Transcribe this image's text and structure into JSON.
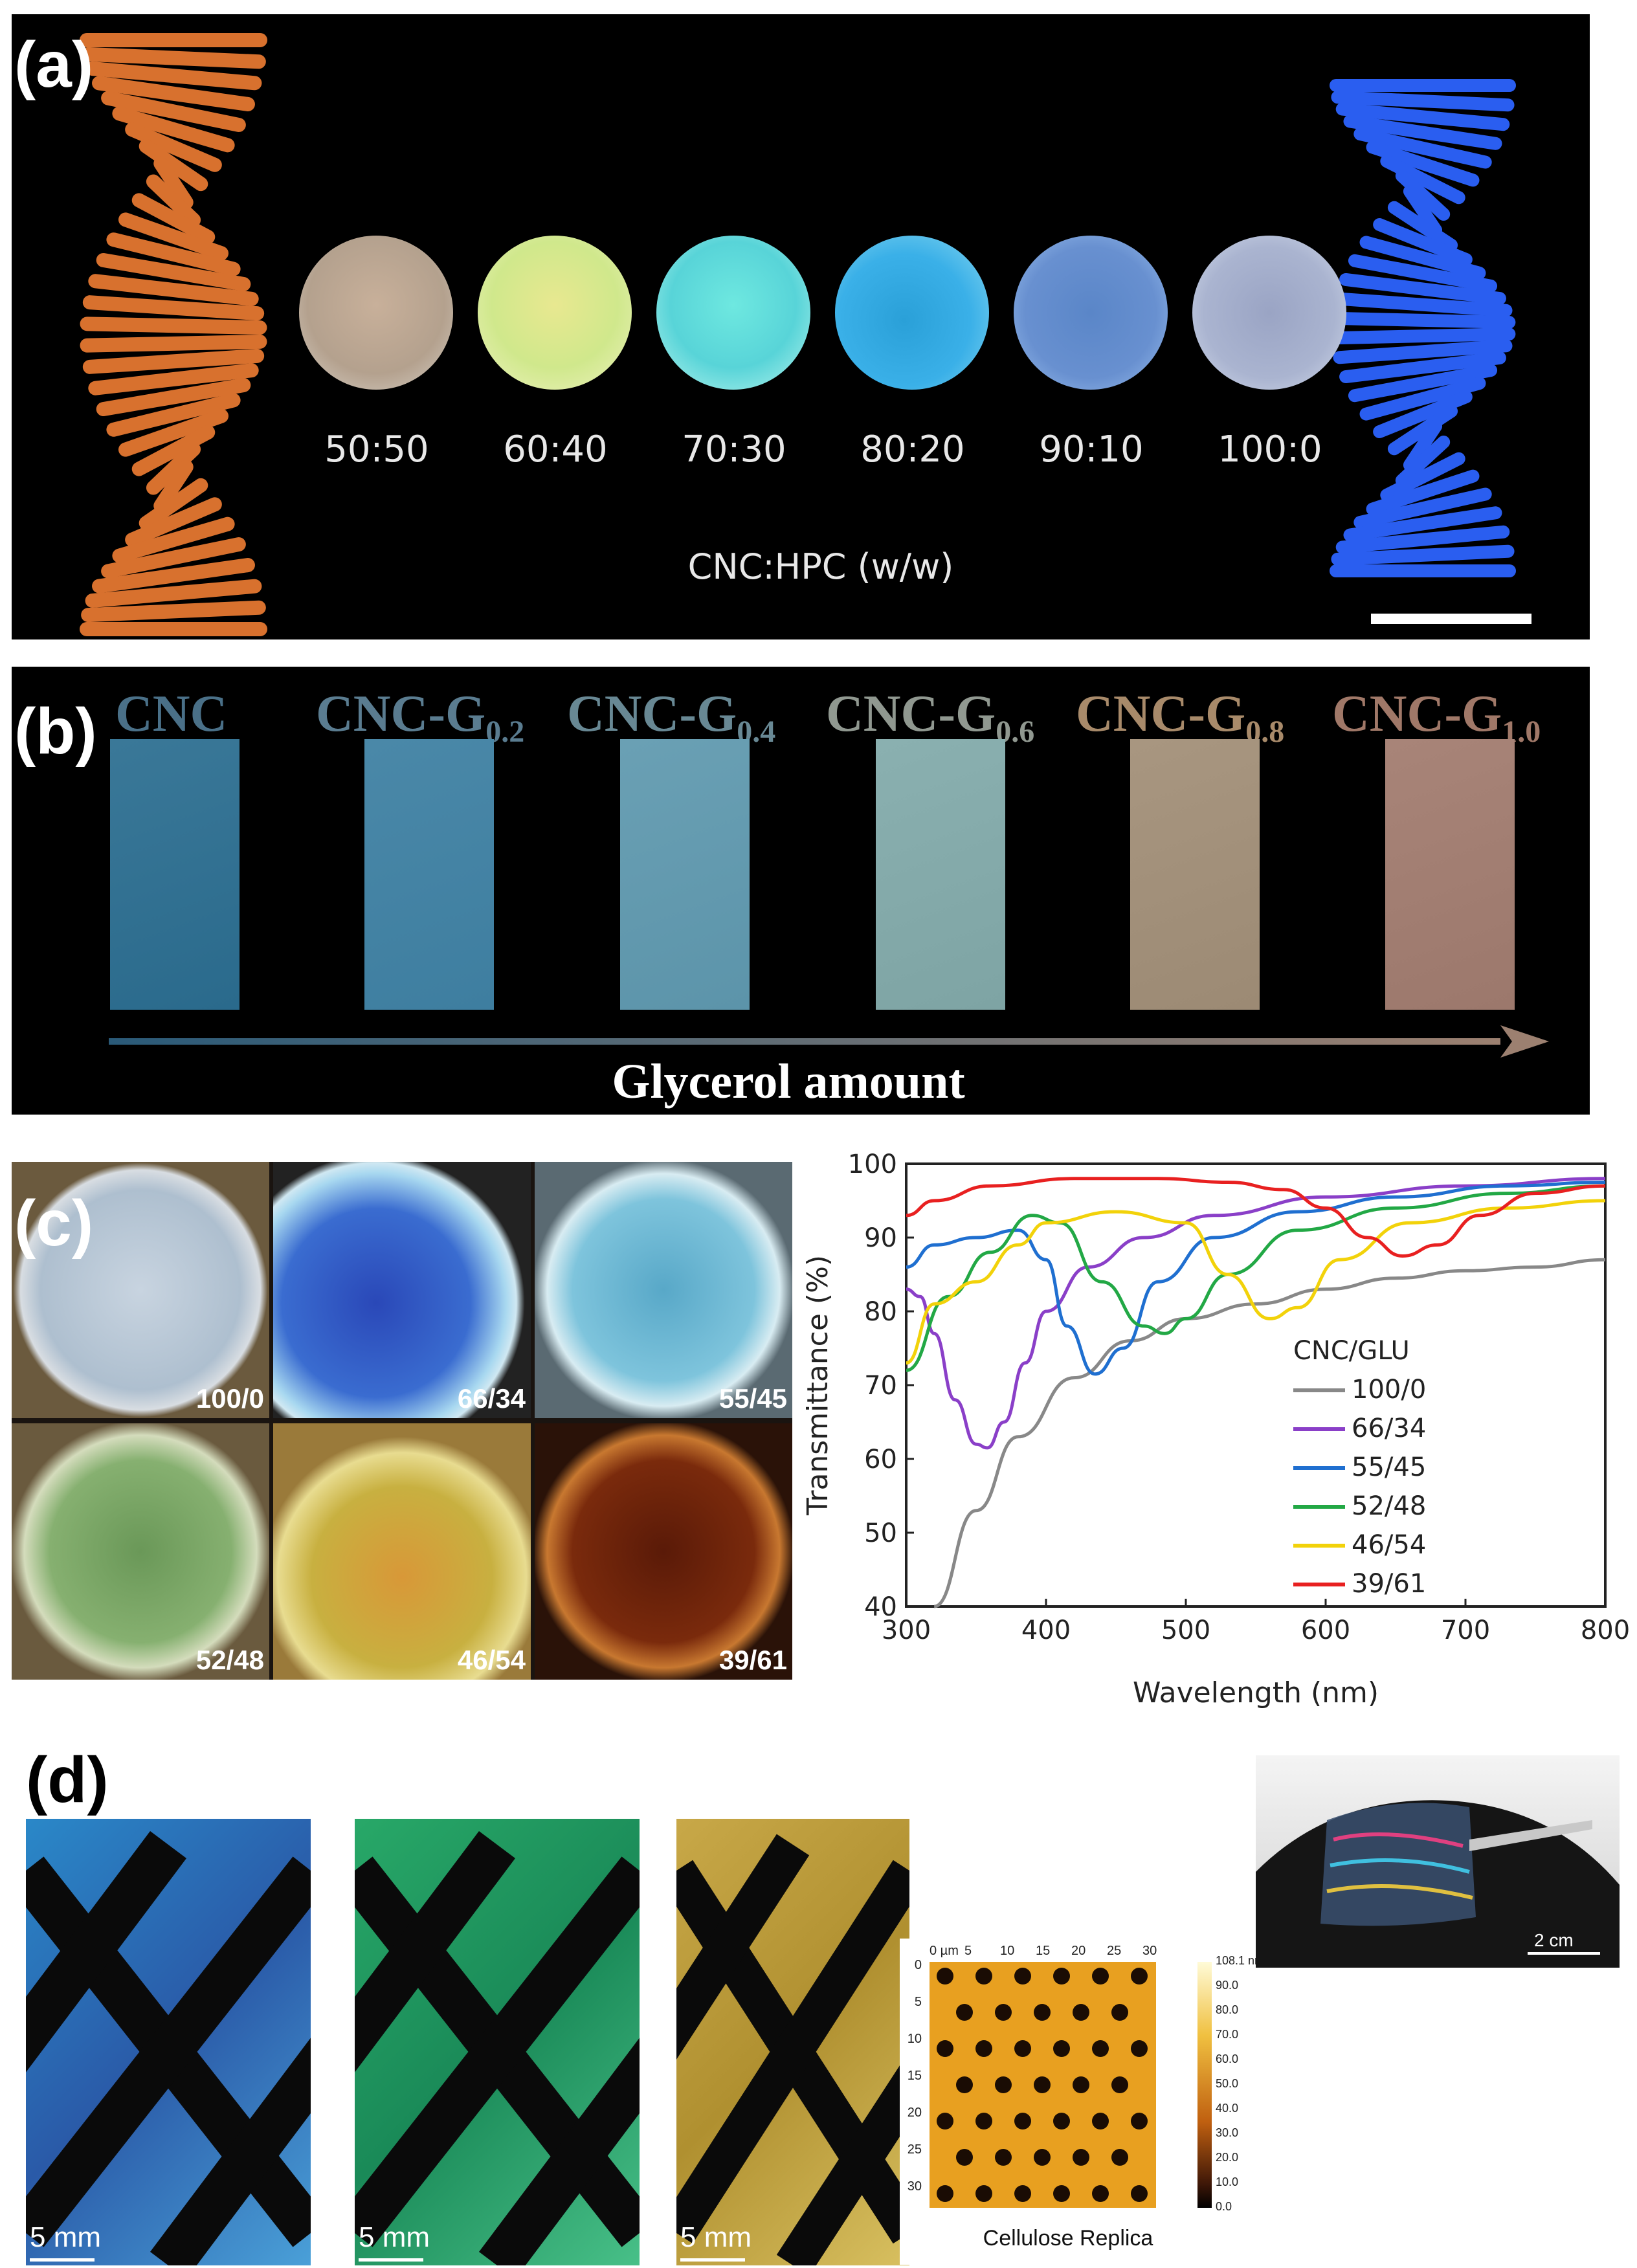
{
  "panel_a": {
    "label": "(a)",
    "ratios": [
      "50:50",
      "60:40",
      "70:30",
      "80:20",
      "90:10",
      "100:0"
    ],
    "axis_label": "CNC:HPC (w/w)",
    "colors": {
      "left_helix": "#d8712e",
      "right_helix": "#2a5ef0"
    }
  },
  "panel_b": {
    "label": "(b)",
    "samples": [
      {
        "base": "CNC",
        "sub": ""
      },
      {
        "base": "CNC-G",
        "sub": "0.2"
      },
      {
        "base": "CNC-G",
        "sub": "0.4"
      },
      {
        "base": "CNC-G",
        "sub": "0.6"
      },
      {
        "base": "CNC-G",
        "sub": "0.8"
      },
      {
        "base": "CNC-G",
        "sub": "1.0"
      }
    ],
    "arrow_label": "Glycerol amount"
  },
  "panel_c": {
    "label": "(c)",
    "dishes": [
      "100/0",
      "66/34",
      "55/45",
      "52/48",
      "46/54",
      "39/61"
    ]
  },
  "chart_data": {
    "type": "line",
    "xlabel": "Wavelength (nm)",
    "ylabel": "Transmittance (%)",
    "xlim": [
      300,
      800
    ],
    "ylim": [
      40,
      100
    ],
    "xticks": [
      300,
      400,
      500,
      600,
      700,
      800
    ],
    "yticks": [
      40,
      50,
      60,
      70,
      80,
      90,
      100
    ],
    "legend_title": "CNC/GLU",
    "legend_position": "right",
    "series": [
      {
        "name": "100/0",
        "color": "#888888",
        "x": [
          320,
          350,
          380,
          420,
          460,
          500,
          550,
          600,
          650,
          700,
          750,
          800
        ],
        "y": [
          40,
          53,
          63,
          71,
          76,
          79,
          81,
          83,
          84.5,
          85.5,
          86,
          87
        ]
      },
      {
        "name": "66/34",
        "color": "#8a3fc8",
        "x": [
          300,
          310,
          320,
          335,
          350,
          358,
          370,
          385,
          400,
          430,
          470,
          520,
          600,
          700,
          800
        ],
        "y": [
          83,
          82,
          77,
          68,
          62,
          61.5,
          65,
          73,
          80,
          86,
          90,
          93,
          95.5,
          97,
          98
        ]
      },
      {
        "name": "55/45",
        "color": "#1f6fd0",
        "x": [
          300,
          320,
          350,
          380,
          400,
          415,
          435,
          455,
          480,
          520,
          580,
          650,
          730,
          800
        ],
        "y": [
          86,
          89,
          90,
          91,
          87,
          78,
          71.5,
          75,
          84,
          90,
          93.5,
          95.5,
          97,
          97.5
        ]
      },
      {
        "name": "52/48",
        "color": "#22a845",
        "x": [
          300,
          330,
          360,
          390,
          410,
          440,
          470,
          485,
          500,
          530,
          580,
          650,
          730,
          800
        ],
        "y": [
          72,
          82,
          88,
          93,
          92,
          84,
          78,
          77,
          79,
          85,
          91,
          94,
          96,
          97
        ]
      },
      {
        "name": "46/54",
        "color": "#f2d20a",
        "x": [
          300,
          320,
          350,
          380,
          400,
          450,
          500,
          530,
          560,
          580,
          610,
          660,
          730,
          800
        ],
        "y": [
          73,
          81,
          84,
          89,
          92,
          93.5,
          92,
          85,
          79,
          80.5,
          87,
          92,
          94,
          95
        ]
      },
      {
        "name": "39/61",
        "color": "#e82020",
        "x": [
          300,
          320,
          360,
          420,
          480,
          530,
          570,
          600,
          630,
          655,
          680,
          710,
          750,
          800
        ],
        "y": [
          93,
          95,
          97,
          98,
          98,
          97.5,
          96.5,
          94,
          90,
          87.5,
          89,
          93,
          96,
          97
        ]
      }
    ]
  },
  "panel_d": {
    "label": "(d)",
    "photo_scales": [
      "5 mm",
      "5 mm",
      "5 mm"
    ],
    "afm": {
      "x_unit": "0 µm",
      "x_ticks": [
        "5",
        "10",
        "15",
        "20",
        "25",
        "30"
      ],
      "y_ticks": [
        "0",
        "5",
        "10",
        "15",
        "20",
        "25",
        "30"
      ],
      "colorbar": [
        "108.1 nm",
        "90.0",
        "80.0",
        "70.0",
        "60.0",
        "50.0",
        "40.0",
        "30.0",
        "20.0",
        "10.0",
        "0.0"
      ],
      "caption": "Cellulose Replica"
    },
    "film_scale": "2 cm"
  }
}
